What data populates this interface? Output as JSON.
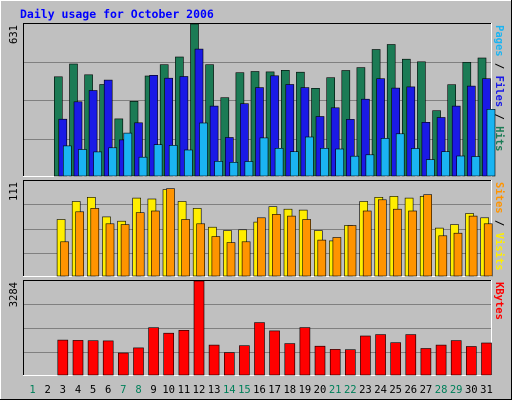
{
  "chart_data": {
    "type": "bar",
    "title": "Daily usage for October 2006",
    "days": [
      "1",
      "2",
      "3",
      "4",
      "5",
      "6",
      "7",
      "8",
      "9",
      "10",
      "11",
      "12",
      "13",
      "14",
      "15",
      "16",
      "17",
      "18",
      "19",
      "20",
      "21",
      "22",
      "23",
      "24",
      "25",
      "26",
      "27",
      "28",
      "29",
      "30",
      "31"
    ],
    "weekend_days": [
      "1",
      "7",
      "8",
      "14",
      "15",
      "21",
      "22",
      "28",
      "29"
    ],
    "panels": [
      {
        "id": "hits-files-pages",
        "ymax_label": "631",
        "ymax": 631,
        "legend": [
          "Pages",
          "/",
          "Files",
          "/",
          "Hits"
        ],
        "series": [
          {
            "name": "Hits",
            "color": "#1b7b55",
            "values": [
              null,
              null,
              412,
              465,
              420,
              380,
              237,
              310,
              415,
              462,
              494,
              631,
              462,
              325,
              429,
              434,
              432,
              439,
              431,
              364,
              408,
              438,
              450,
              525,
              546,
              485,
              474,
              271,
              379,
              472,
              490
            ]
          },
          {
            "name": "Files",
            "color": "#1a1ae6",
            "values": [
              null,
              null,
              236,
              308,
              355,
              398,
              150,
              221,
              418,
              406,
              413,
              527,
              290,
              160,
              300,
              367,
              416,
              380,
              367,
              247,
              283,
              235,
              319,
              404,
              365,
              370,
              223,
              243,
              290,
              373,
              404
            ]
          },
          {
            "name": "Pages",
            "color": "#1ab4f2",
            "values": [
              null,
              null,
              125,
              110,
              100,
              117,
              178,
              78,
              130,
              127,
              108,
              220,
              61,
              57,
              60,
              158,
              115,
              101,
              162,
              115,
              112,
              82,
              88,
              156,
              175,
              114,
              68,
              101,
              83,
              81,
              277
            ]
          }
        ]
      },
      {
        "id": "visits-sites",
        "ymax_label": "111",
        "ymax": 111,
        "legend": [
          "Sites",
          "/",
          "Visits"
        ],
        "series": [
          {
            "name": "Visits",
            "color": "#ffee00",
            "values": [
              null,
              null,
              66,
              87,
              92,
              69,
              64,
              91,
              90,
              101,
              87,
              79,
              57,
              53,
              54,
              63,
              81,
              78,
              77,
              53,
              41,
              59,
              87,
              92,
              93,
              91,
              93,
              56,
              60,
              73,
              68
            ]
          },
          {
            "name": "Sites",
            "color": "#ff9400",
            "values": [
              null,
              null,
              40,
              75,
              79,
              61,
              60,
              74,
              76,
              102,
              66,
              61,
              46,
              39,
              40,
              68,
              72,
              70,
              66,
              42,
              45,
              59,
              76,
              89,
              78,
              76,
              95,
              47,
              50,
              70,
              61
            ]
          }
        ]
      },
      {
        "id": "kbytes",
        "ymax_label": "3284",
        "ymax": 3284,
        "legend": [
          "KBytes"
        ],
        "series": [
          {
            "name": "KBytes",
            "color": "#ff0000",
            "values": [
              null,
              null,
              1219,
              1210,
              1197,
              1193,
              769,
              947,
              1654,
              1461,
              1563,
              3284,
              1044,
              784,
              1022,
              1829,
              1539,
              1097,
              1657,
              1007,
              896,
              885,
              1363,
              1412,
              1128,
              1412,
              927,
              1044,
              1202,
              995,
              1118
            ]
          }
        ]
      }
    ]
  }
}
